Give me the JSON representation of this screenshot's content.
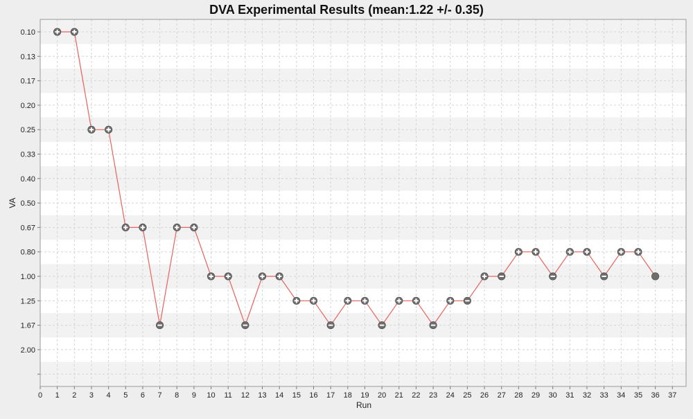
{
  "chart_data": {
    "type": "line",
    "title": "DVA Experimental Results (mean:1.22 +/- 0.35)",
    "xlabel": "Run",
    "ylabel": "VA",
    "xlim": [
      0,
      37.8
    ],
    "x_ticks": [
      "0",
      "1",
      "2",
      "3",
      "4",
      "5",
      "6",
      "7",
      "8",
      "9",
      "10",
      "11",
      "12",
      "13",
      "14",
      "15",
      "16",
      "17",
      "18",
      "19",
      "20",
      "21",
      "22",
      "23",
      "24",
      "25",
      "26",
      "27",
      "28",
      "29",
      "30",
      "31",
      "32",
      "33",
      "34",
      "35",
      "36",
      "37"
    ],
    "y_ticks": [
      "0.10",
      "0.13",
      "0.17",
      "0.20",
      "0.25",
      "0.33",
      "0.40",
      "0.50",
      "0.67",
      "0.80",
      "1.00",
      "1.25",
      "1.67",
      "2.00",
      ""
    ],
    "grid": true,
    "legend": "none",
    "series": [
      {
        "line_color": "#e8615b",
        "points": [
          {
            "x": 1,
            "y": "0.10",
            "marker": "plus"
          },
          {
            "x": 2,
            "y": "0.10",
            "marker": "plus"
          },
          {
            "x": 3,
            "y": "0.25",
            "marker": "plus"
          },
          {
            "x": 4,
            "y": "0.25",
            "marker": "plus"
          },
          {
            "x": 5,
            "y": "0.67",
            "marker": "plus"
          },
          {
            "x": 6,
            "y": "0.67",
            "marker": "plus"
          },
          {
            "x": 7,
            "y": "1.67",
            "marker": "minus"
          },
          {
            "x": 8,
            "y": "0.67",
            "marker": "plus"
          },
          {
            "x": 9,
            "y": "0.67",
            "marker": "plus"
          },
          {
            "x": 10,
            "y": "1.00",
            "marker": "plus"
          },
          {
            "x": 11,
            "y": "1.00",
            "marker": "plus"
          },
          {
            "x": 12,
            "y": "1.67",
            "marker": "minus"
          },
          {
            "x": 13,
            "y": "1.00",
            "marker": "plus"
          },
          {
            "x": 14,
            "y": "1.00",
            "marker": "plus"
          },
          {
            "x": 15,
            "y": "1.25",
            "marker": "plus"
          },
          {
            "x": 16,
            "y": "1.25",
            "marker": "plus"
          },
          {
            "x": 17,
            "y": "1.67",
            "marker": "minus"
          },
          {
            "x": 18,
            "y": "1.25",
            "marker": "plus"
          },
          {
            "x": 19,
            "y": "1.25",
            "marker": "plus"
          },
          {
            "x": 20,
            "y": "1.67",
            "marker": "minus"
          },
          {
            "x": 21,
            "y": "1.25",
            "marker": "plus"
          },
          {
            "x": 22,
            "y": "1.25",
            "marker": "plus"
          },
          {
            "x": 23,
            "y": "1.67",
            "marker": "minus"
          },
          {
            "x": 24,
            "y": "1.25",
            "marker": "plus"
          },
          {
            "x": 25,
            "y": "1.25",
            "marker": "minus"
          },
          {
            "x": 26,
            "y": "1.00",
            "marker": "plus"
          },
          {
            "x": 27,
            "y": "1.00",
            "marker": "minus"
          },
          {
            "x": 28,
            "y": "0.80",
            "marker": "plus"
          },
          {
            "x": 29,
            "y": "0.80",
            "marker": "plus"
          },
          {
            "x": 30,
            "y": "1.00",
            "marker": "minus"
          },
          {
            "x": 31,
            "y": "0.80",
            "marker": "plus"
          },
          {
            "x": 32,
            "y": "0.80",
            "marker": "plus"
          },
          {
            "x": 33,
            "y": "1.00",
            "marker": "minus"
          },
          {
            "x": 34,
            "y": "0.80",
            "marker": "plus"
          },
          {
            "x": 35,
            "y": "0.80",
            "marker": "plus"
          },
          {
            "x": 36,
            "y": "1.00",
            "marker": "solid"
          }
        ]
      }
    ]
  },
  "colors": {
    "background": "#eeeeee",
    "plot_background": "#ffffff",
    "band": "#f2f2f2",
    "grid": "#d4d4d4",
    "axis": "#777777",
    "line": "#e8615b",
    "marker_fill": "#6e6e6e",
    "marker_symbol": "#ffffff",
    "text": "#222222"
  }
}
